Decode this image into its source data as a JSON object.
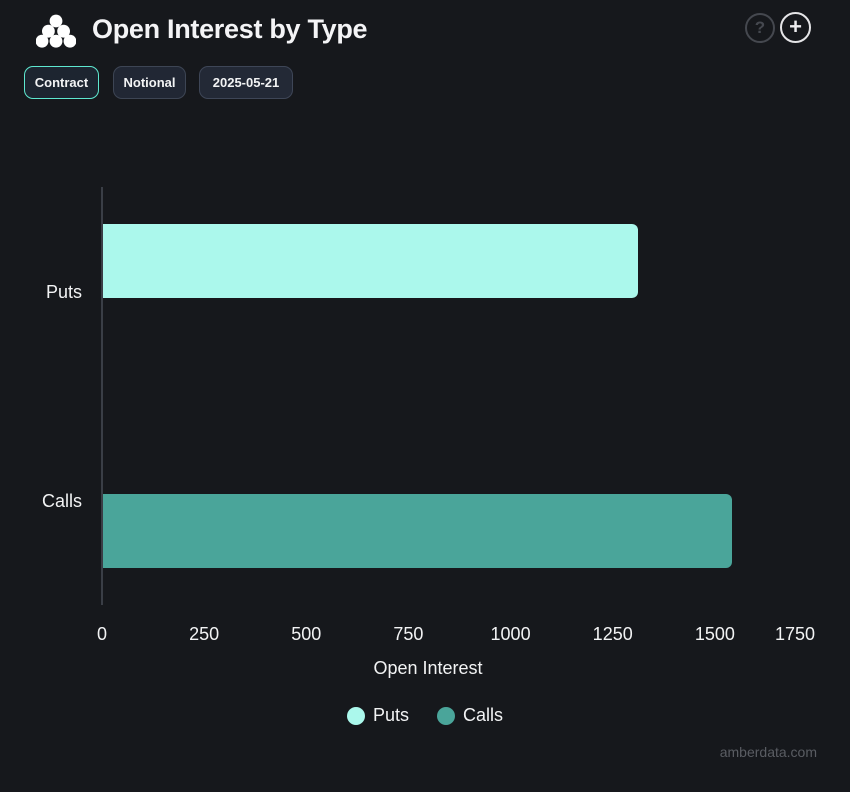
{
  "header": {
    "title": "Open Interest by Type",
    "help_glyph": "?",
    "add_glyph": "+"
  },
  "toolbar": {
    "buttons": [
      {
        "label": "Contract",
        "active": true
      },
      {
        "label": "Notional",
        "active": false
      },
      {
        "label": "2025-05-21",
        "active": false
      }
    ]
  },
  "chart_data": {
    "type": "bar",
    "orientation": "horizontal",
    "title": "Open Interest by Type",
    "categories": [
      "Puts",
      "Calls"
    ],
    "series": [
      {
        "name": "Puts",
        "color": "#abf8ec",
        "values": [
          1310,
          null
        ]
      },
      {
        "name": "Calls",
        "color": "#4aa59a",
        "values": [
          null,
          1540
        ]
      }
    ],
    "xlabel": "Open Interest",
    "ylabel": "",
    "xlim": [
      0,
      1750
    ],
    "xticks": [
      0,
      250,
      500,
      750,
      1000,
      1250,
      1500,
      1750
    ],
    "grid": false,
    "legend_position": "bottom"
  },
  "legend": {
    "items": [
      {
        "label": "Puts",
        "color": "#abf8ec"
      },
      {
        "label": "Calls",
        "color": "#4aa59a"
      }
    ]
  },
  "watermark": "amberdata.com",
  "colors": {
    "background": "#16181c",
    "accent": "#5ee8d0",
    "axis_line": "#3a3e46",
    "text": "#f2f3f4",
    "muted_text": "#5a5d63"
  }
}
